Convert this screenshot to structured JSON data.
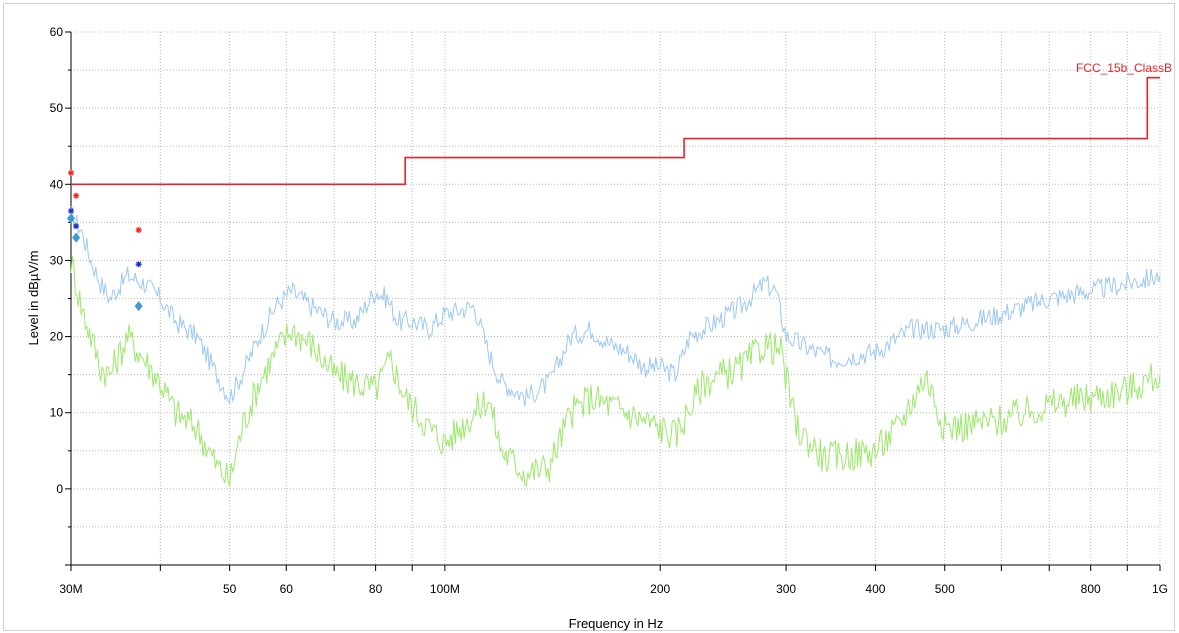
{
  "chart_data": {
    "type": "line",
    "title": "",
    "xlabel": "Frequency in Hz",
    "ylabel": "Level in dBµV/m",
    "x_scale": "log",
    "xlim": [
      30000000,
      1000000000
    ],
    "ylim": [
      -10,
      60
    ],
    "yticks": [
      0,
      10,
      20,
      30,
      40,
      50,
      60
    ],
    "xticks": [
      {
        "value": 30000000,
        "label": "30M"
      },
      {
        "value": 50000000,
        "label": "50"
      },
      {
        "value": 60000000,
        "label": "60"
      },
      {
        "value": 80000000,
        "label": "80"
      },
      {
        "value": 100000000,
        "label": "100M"
      },
      {
        "value": 200000000,
        "label": "200"
      },
      {
        "value": 300000000,
        "label": "300"
      },
      {
        "value": 400000000,
        "label": "400"
      },
      {
        "value": 500000000,
        "label": "500"
      },
      {
        "value": 800000000,
        "label": "800"
      },
      {
        "value": 1000000000,
        "label": "1G"
      }
    ],
    "x_gridlines": [
      30000000,
      40000000,
      50000000,
      60000000,
      70000000,
      80000000,
      90000000,
      100000000,
      200000000,
      300000000,
      400000000,
      500000000,
      600000000,
      700000000,
      800000000,
      900000000,
      1000000000
    ],
    "grid": true,
    "colors": {
      "limit": "#e8232a",
      "peak": "#9cc8f2",
      "avg": "#9be86a",
      "marker_red": "#ff2020",
      "marker_blue": "#1a2fc8",
      "marker_diamond": "#3d9ad6"
    },
    "limit_line": {
      "name": "FCC_15b_ClassB",
      "steps": [
        [
          30000000,
          40
        ],
        [
          88000000,
          40
        ],
        [
          88000000,
          43.5
        ],
        [
          216000000,
          43.5
        ],
        [
          216000000,
          46
        ],
        [
          960000000,
          46
        ],
        [
          960000000,
          54
        ],
        [
          1000000000,
          54
        ]
      ]
    },
    "series": [
      {
        "key": "peak",
        "points": [
          [
            30000000,
            36
          ],
          [
            31000000,
            34
          ],
          [
            32000000,
            30
          ],
          [
            33000000,
            27
          ],
          [
            34000000,
            25
          ],
          [
            36000000,
            28
          ],
          [
            38000000,
            27
          ],
          [
            40000000,
            25
          ],
          [
            42000000,
            22
          ],
          [
            45000000,
            20
          ],
          [
            48000000,
            15
          ],
          [
            50000000,
            12
          ],
          [
            52000000,
            15
          ],
          [
            55000000,
            20
          ],
          [
            58000000,
            24
          ],
          [
            61000000,
            26
          ],
          [
            65000000,
            24
          ],
          [
            70000000,
            22
          ],
          [
            75000000,
            22
          ],
          [
            80000000,
            26
          ],
          [
            83000000,
            25
          ],
          [
            86000000,
            22
          ],
          [
            90000000,
            22
          ],
          [
            95000000,
            21
          ],
          [
            100000000,
            23
          ],
          [
            110000000,
            24
          ],
          [
            115000000,
            18
          ],
          [
            120000000,
            14
          ],
          [
            130000000,
            12
          ],
          [
            140000000,
            14
          ],
          [
            150000000,
            20
          ],
          [
            160000000,
            21
          ],
          [
            170000000,
            19
          ],
          [
            180000000,
            18
          ],
          [
            190000000,
            16
          ],
          [
            200000000,
            16
          ],
          [
            210000000,
            15
          ],
          [
            220000000,
            20
          ],
          [
            240000000,
            22
          ],
          [
            260000000,
            24
          ],
          [
            280000000,
            27
          ],
          [
            290000000,
            26
          ],
          [
            300000000,
            20
          ],
          [
            330000000,
            18
          ],
          [
            350000000,
            17
          ],
          [
            400000000,
            18
          ],
          [
            450000000,
            21
          ],
          [
            500000000,
            21
          ],
          [
            600000000,
            23
          ],
          [
            700000000,
            25
          ],
          [
            800000000,
            26
          ],
          [
            900000000,
            27
          ],
          [
            1000000000,
            28
          ]
        ]
      },
      {
        "key": "avg",
        "points": [
          [
            30000000,
            30
          ],
          [
            31000000,
            24
          ],
          [
            32000000,
            20
          ],
          [
            33000000,
            16
          ],
          [
            34000000,
            15
          ],
          [
            36000000,
            20
          ],
          [
            38000000,
            17
          ],
          [
            40000000,
            14
          ],
          [
            42000000,
            10
          ],
          [
            45000000,
            8
          ],
          [
            48000000,
            3
          ],
          [
            50000000,
            1
          ],
          [
            52000000,
            8
          ],
          [
            55000000,
            14
          ],
          [
            58000000,
            18
          ],
          [
            61000000,
            21
          ],
          [
            65000000,
            19
          ],
          [
            70000000,
            15
          ],
          [
            75000000,
            14
          ],
          [
            80000000,
            13
          ],
          [
            84000000,
            17
          ],
          [
            88000000,
            12
          ],
          [
            95000000,
            8
          ],
          [
            100000000,
            6
          ],
          [
            110000000,
            10
          ],
          [
            115000000,
            12
          ],
          [
            120000000,
            5
          ],
          [
            130000000,
            2
          ],
          [
            140000000,
            3
          ],
          [
            150000000,
            10
          ],
          [
            160000000,
            12
          ],
          [
            170000000,
            11
          ],
          [
            180000000,
            10
          ],
          [
            200000000,
            8
          ],
          [
            210000000,
            7
          ],
          [
            230000000,
            14
          ],
          [
            260000000,
            16
          ],
          [
            280000000,
            19
          ],
          [
            295000000,
            18
          ],
          [
            310000000,
            8
          ],
          [
            340000000,
            4
          ],
          [
            400000000,
            5
          ],
          [
            430000000,
            8
          ],
          [
            470000000,
            15
          ],
          [
            500000000,
            8
          ],
          [
            600000000,
            9
          ],
          [
            700000000,
            11
          ],
          [
            800000000,
            12
          ],
          [
            900000000,
            13
          ],
          [
            1000000000,
            15
          ]
        ]
      }
    ],
    "markers": [
      {
        "x": 30000000,
        "y": 41.5,
        "shape": "star",
        "color": "#ff2020"
      },
      {
        "x": 30000000,
        "y": 36.5,
        "shape": "star",
        "color": "#1a2fc8"
      },
      {
        "x": 30000000,
        "y": 35.5,
        "shape": "diamond",
        "color": "#3d9ad6"
      },
      {
        "x": 30500000,
        "y": 38.5,
        "shape": "star",
        "color": "#ff2020"
      },
      {
        "x": 30500000,
        "y": 34.5,
        "shape": "star",
        "color": "#1a2fc8"
      },
      {
        "x": 30500000,
        "y": 33.0,
        "shape": "diamond",
        "color": "#3d9ad6"
      },
      {
        "x": 37300000,
        "y": 34.0,
        "shape": "star",
        "color": "#ff2020"
      },
      {
        "x": 37300000,
        "y": 29.5,
        "shape": "star",
        "color": "#1a2fc8"
      },
      {
        "x": 37300000,
        "y": 24.0,
        "shape": "diamond",
        "color": "#3d9ad6"
      }
    ]
  }
}
